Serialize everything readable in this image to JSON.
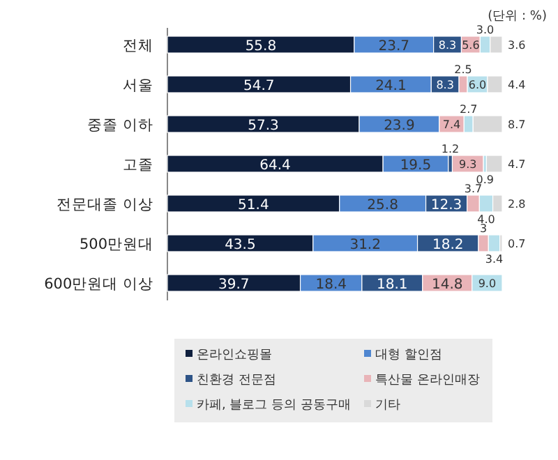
{
  "chart_data": {
    "type": "bar",
    "orientation": "horizontal",
    "stacked": true,
    "legend": "bottom",
    "annotations": [
      "(단위 : %)"
    ],
    "categories": [
      "전체",
      "서울",
      "중졸 이하",
      "고졸",
      "전문대졸 이상",
      "500만원대",
      "600만원대 이상"
    ],
    "series": [
      {
        "name": "온라인쇼핑몰",
        "color": "#0f1f3d",
        "values": [
          55.8,
          54.7,
          57.3,
          64.4,
          51.4,
          43.5,
          39.7
        ],
        "value_labels": [
          "55.8",
          "54.7",
          "57.3",
          "64.4",
          "51.4",
          "43.5",
          "39.7"
        ]
      },
      {
        "name": "대형 할인점",
        "color": "#4f86d0",
        "values": [
          23.7,
          24.1,
          23.9,
          19.5,
          25.8,
          31.2,
          18.4
        ],
        "value_labels": [
          "23.7",
          "24.1",
          "23.9",
          "19.5",
          "25.8",
          "31.2",
          "18.4"
        ]
      },
      {
        "name": "친환경 전문점",
        "color": "#2e5487",
        "values": [
          8.3,
          8.3,
          null,
          1.2,
          12.3,
          18.2,
          18.1
        ],
        "value_labels": [
          "8.3",
          "8.3",
          null,
          "1.2",
          "12.3",
          "18.2",
          "18.1"
        ]
      },
      {
        "name": "특산물 온라인매장",
        "color": "#e9b4b8",
        "values": [
          5.6,
          2.5,
          7.4,
          9.3,
          3.7,
          3,
          14.8
        ],
        "value_labels": [
          "5.6",
          "2.5",
          "7.4",
          "9.3",
          "3.7",
          "3",
          "14.8"
        ]
      },
      {
        "name": "카페, 블로그 등의 공동구매",
        "color": "#b7e0ec",
        "values": [
          3.0,
          6.0,
          2.7,
          0.9,
          4.0,
          3.4,
          9.0
        ],
        "value_labels": [
          "3.0",
          "6.0",
          "2.7",
          "0.9",
          "4.0",
          "3.4",
          "9.0"
        ]
      },
      {
        "name": "기타",
        "color": "#d9d9d9",
        "values": [
          3.6,
          4.4,
          8.7,
          4.7,
          2.8,
          0.7,
          null
        ],
        "value_labels": [
          "3.6",
          "4.4",
          "8.7",
          "4.7",
          "2.8",
          "0.7",
          null
        ]
      }
    ]
  }
}
